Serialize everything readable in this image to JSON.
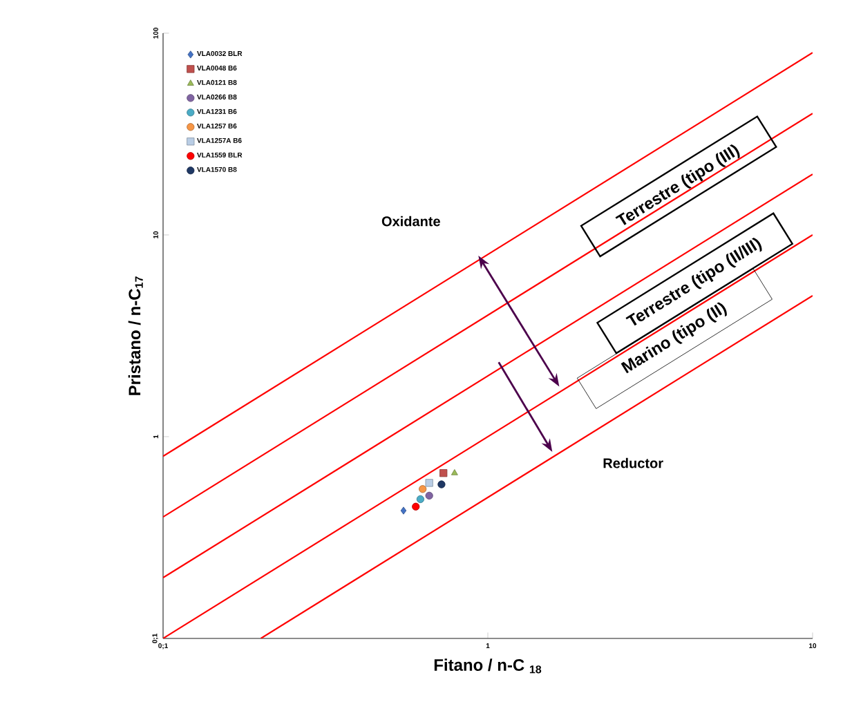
{
  "chart_data": {
    "type": "scatter",
    "xlabel": "Fitano / n-C $_{18}$",
    "ylabel": "Pristano / n-C$_{17}$",
    "log": "xy",
    "xlim": [
      0.1,
      10
    ],
    "ylim": [
      0.1,
      100
    ],
    "xticks": [
      {
        "value": 0.1,
        "label": "0;1"
      },
      1,
      10
    ],
    "yticks": [
      {
        "value": 0.1,
        "label": "0;1"
      },
      1,
      10,
      100
    ],
    "legend": "top left",
    "grid": false,
    "series": [
      {
        "name": "VLA0032 BLR",
        "color": "#4472c4",
        "marker": "diamond",
        "x": [
          0.55
        ],
        "values": [
          0.43
        ]
      },
      {
        "name": "VLA0048 B6",
        "color": "#c0504d",
        "marker": "square",
        "x": [
          0.73
        ],
        "values": [
          0.66
        ]
      },
      {
        "name": "VLA0121 B8",
        "color": "#9bbb59",
        "marker": "triangle",
        "x": [
          0.79
        ],
        "values": [
          0.66
        ]
      },
      {
        "name": "VLA0266 B8",
        "color": "#8064a2",
        "marker": "circle",
        "x": [
          0.66
        ],
        "values": [
          0.51
        ]
      },
      {
        "name": "VLA1231 B6",
        "color": "#4bacc6",
        "marker": "circle",
        "x": [
          0.62
        ],
        "values": [
          0.49
        ]
      },
      {
        "name": "VLA1257 B6",
        "color": "#f79646",
        "marker": "circle",
        "x": [
          0.63
        ],
        "values": [
          0.55
        ]
      },
      {
        "name": "VLA1257A B6",
        "color": "#b9cde5",
        "marker": "square",
        "x": [
          0.66
        ],
        "values": [
          0.59
        ]
      },
      {
        "name": "VLA1559 BLR",
        "color": "#ff0000",
        "marker": "circle",
        "x": [
          0.6
        ],
        "values": [
          0.45
        ]
      },
      {
        "name": "VLA1570 B8",
        "color": "#1f3864",
        "marker": "circle",
        "x": [
          0.72
        ],
        "values": [
          0.58
        ]
      },
      {
        "type": "line",
        "color": "#ff0000",
        "marker": "none",
        "x": [
          0.1,
          10
        ],
        "values": [
          0.8,
          80
        ]
      },
      {
        "type": "line",
        "color": "#ff0000",
        "marker": "none",
        "x": [
          0.1,
          10
        ],
        "values": [
          0.4,
          40
        ]
      },
      {
        "type": "line",
        "color": "#ff0000",
        "marker": "none",
        "x": [
          0.1,
          10
        ],
        "values": [
          0.2,
          20
        ]
      },
      {
        "type": "line",
        "color": "#ff0000",
        "marker": "none",
        "x": [
          0.1,
          10
        ],
        "values": [
          0.1,
          10
        ]
      },
      {
        "type": "line",
        "color": "#ff0000",
        "marker": "none",
        "x": [
          0.2,
          10
        ],
        "values": [
          0.1,
          5
        ]
      }
    ],
    "annotations": [
      "Oxidante",
      "Reductor",
      "Terrestre (tipo (III)",
      "Terrestre (tipo (II/III)",
      "Marino  (tipo (II)"
    ]
  }
}
